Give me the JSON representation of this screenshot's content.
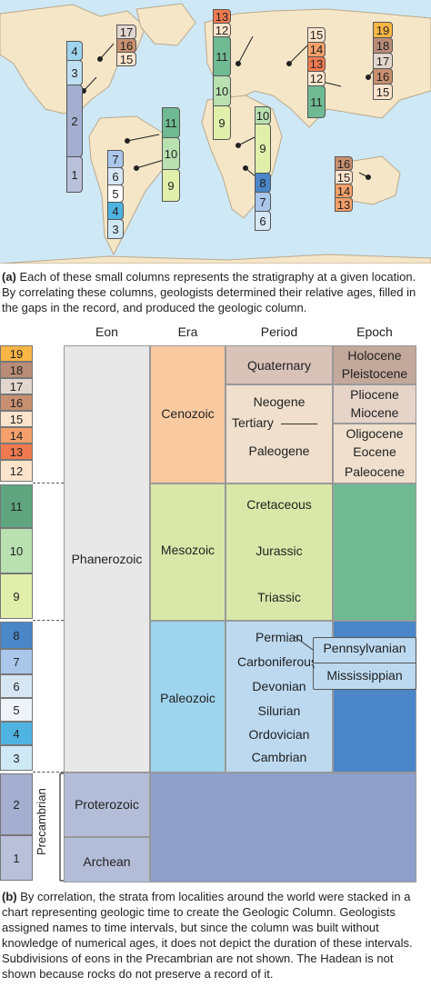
{
  "caption_a": {
    "label": "(a)",
    "text": " Each of these small columns represents the stratigraphy at a given location. By correlating these columns, geologists determined their relative ages, filled in the gaps in the record, and produced the geologic column."
  },
  "caption_b": {
    "label": "(b)",
    "text": " By correlation, the strata from localities around the world were stacked in a chart representing geologic time to create the Geologic Column. Geologists assigned names to time intervals, but since the column was built without knowledge of numerical ages, it does not depict the duration of these intervals. Subdivisions of eons in the Precambrian are not shown. The Hadean is not shown because rocks do not preserve a record of it."
  },
  "headers": {
    "eon": "Eon",
    "era": "Era",
    "period": "Period",
    "epoch": "Epoch"
  },
  "eons": {
    "phanerozoic": "Phanerozoic",
    "precambrian": "Precambrian"
  },
  "eras": {
    "cenozoic": "Cenozoic",
    "mesozoic": "Mesozoic",
    "paleozoic": "Paleozoic",
    "proterozoic": "Proterozoic",
    "archean": "Archean"
  },
  "periods": {
    "quaternary": "Quaternary",
    "neogene": "Neogene",
    "tertiary": "Tertiary",
    "paleogene": "Paleogene",
    "cretaceous": "Cretaceous",
    "jurassic": "Jurassic",
    "triassic": "Triassic",
    "permian": "Permian",
    "carboniferous": "Carboniferous",
    "devonian": "Devonian",
    "silurian": "Silurian",
    "ordovician": "Ordovician",
    "cambrian": "Cambrian"
  },
  "epochs": {
    "holocene": "Holocene",
    "pleistocene": "Pleistocene",
    "pliocene": "Pliocene",
    "miocene": "Miocene",
    "oligocene": "Oligocene",
    "eocene": "Eocene",
    "paleocene": "Paleocene",
    "pennsylvanian": "Pennsylvanian",
    "mississippian": "Mississippian"
  },
  "strata_numbers": [
    "1",
    "2",
    "3",
    "4",
    "5",
    "6",
    "7",
    "8",
    "9",
    "10",
    "11",
    "12",
    "13",
    "14",
    "15",
    "16",
    "17",
    "18",
    "19"
  ],
  "colors": {
    "ocean": "#cfe8f5",
    "land": "#f5e6c8",
    "eon_phanerozoic": "#e8e8e8",
    "cenozoic": "#f9c9a0",
    "mesozoic": "#d9e8a8",
    "paleozoic": "#9fd4ee",
    "precambrian": "#a3aed0",
    "quaternary": "#d9c2b8",
    "tertiary": "#efdfcc",
    "cretaceous": "#7dbf93",
    "epoch_mesozoic": "#6fba93",
    "epoch_paleozoic": "#4a86c8",
    "epoch_precambrian": "#8e9fc9"
  }
}
